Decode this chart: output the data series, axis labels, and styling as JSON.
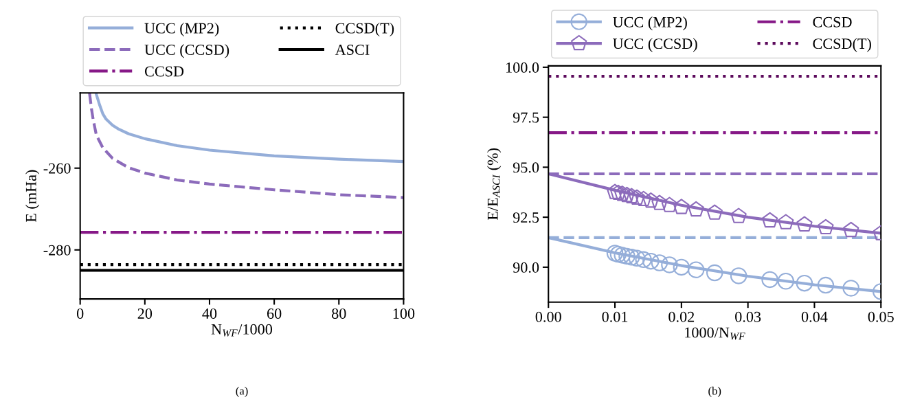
{
  "chart_data": [
    {
      "type": "line",
      "xlabel": "N$_{WF}$/1000",
      "ylabel": "E (mHa)",
      "xlim": [
        0,
        100
      ],
      "ylim": [
        -292,
        -241.6
      ],
      "xticks": [
        0,
        20,
        40,
        60,
        80,
        100
      ],
      "yticks": [
        -260,
        -280
      ],
      "legend": "top",
      "grid": false,
      "annotations": [
        "(a)"
      ],
      "series": [
        {
          "name": "UCC (MP2)",
          "color": "#95aed9",
          "line_style": "solid",
          "x": [
            4.9,
            6,
            7,
            8,
            10,
            12,
            15,
            20,
            30,
            40,
            60,
            80,
            100
          ],
          "values": [
            -241.7,
            -244.5,
            -246.7,
            -248.0,
            -249.5,
            -250.5,
            -251.6,
            -252.8,
            -254.5,
            -255.6,
            -257.0,
            -257.8,
            -258.4
          ]
        },
        {
          "name": "UCC (CCSD)",
          "color": "#8c6bbb",
          "line_style": "dashed",
          "x": [
            2.9,
            3.5,
            4,
            5,
            7,
            10,
            15,
            20,
            30,
            40,
            60,
            80,
            100
          ],
          "values": [
            -241.7,
            -245.5,
            -248.0,
            -251.9,
            -255.0,
            -257.6,
            -259.9,
            -261.2,
            -262.9,
            -263.9,
            -265.3,
            -266.5,
            -267.2
          ]
        },
        {
          "name": "CCSD",
          "color": "#861887",
          "line_style": "dashdot",
          "x": [
            0,
            100
          ],
          "values": [
            -275.7,
            -275.7
          ]
        },
        {
          "name": "CCSD(T)",
          "color": "#000000",
          "line_style": "dotted",
          "x": [
            0,
            100
          ],
          "values": [
            -283.6,
            -283.6
          ]
        },
        {
          "name": "ASCI",
          "color": "#000000",
          "line_style": "solid",
          "x": [
            0,
            100
          ],
          "values": [
            -285.0,
            -285.0
          ]
        }
      ]
    },
    {
      "type": "line",
      "xlabel": "1000/N$_{WF}$",
      "ylabel": "E/E$_{ASCI}$ (%)",
      "xlim": [
        0,
        0.05
      ],
      "ylim": [
        88.25,
        100.07
      ],
      "xticks": [
        {
          "value": 0,
          "label": "0.00"
        },
        {
          "value": 0.01,
          "label": "0.01"
        },
        {
          "value": 0.02,
          "label": "0.02"
        },
        {
          "value": 0.03,
          "label": "0.03"
        },
        {
          "value": 0.04,
          "label": "0.04"
        },
        {
          "value": 0.05,
          "label": "0.05"
        }
      ],
      "yticks": [
        {
          "value": 90,
          "label": "90.0"
        },
        {
          "value": 92.5,
          "label": "92.5"
        },
        {
          "value": 95,
          "label": "95.0"
        },
        {
          "value": 97.5,
          "label": "97.5"
        },
        {
          "value": 100,
          "label": "100.0"
        }
      ],
      "legend": "top",
      "grid": false,
      "annotations": [
        "(b)"
      ],
      "series": [
        {
          "name": "UCC (MP2)",
          "type": "scatter",
          "marker": "circle",
          "color": "#95aed9",
          "x": [
            0.01,
            0.0105,
            0.0111,
            0.0118,
            0.0125,
            0.0133,
            0.0143,
            0.0154,
            0.0167,
            0.0182,
            0.02,
            0.0222,
            0.025,
            0.0286,
            0.0333,
            0.0357,
            0.0385,
            0.0417,
            0.0455,
            0.05
          ],
          "values": [
            90.7,
            90.65,
            90.6,
            90.55,
            90.5,
            90.45,
            90.38,
            90.3,
            90.22,
            90.12,
            90.0,
            89.87,
            89.72,
            89.57,
            89.38,
            89.3,
            89.2,
            89.1,
            88.95,
            88.78
          ]
        },
        {
          "name": "UCC (CCSD)",
          "type": "scatter",
          "color": "#8c6bbb",
          "x": [
            0.01,
            0.0105,
            0.0111,
            0.0118,
            0.0125,
            0.0133,
            0.0143,
            0.0154,
            0.0167,
            0.0182,
            0.02,
            0.0222,
            0.025,
            0.0286,
            0.0333,
            0.0357,
            0.0385,
            0.0417,
            0.0455,
            0.05
          ],
          "values": [
            93.75,
            93.71,
            93.66,
            93.6,
            93.54,
            93.47,
            93.4,
            93.32,
            93.2,
            93.1,
            93.0,
            92.88,
            92.72,
            92.55,
            92.33,
            92.24,
            92.13,
            91.99,
            91.85,
            91.69
          ]
        },
        {
          "type": "line",
          "color": "#95aed9",
          "line_style": "solid",
          "x": [
            0,
            0.01,
            0.02,
            0.03,
            0.04,
            0.05
          ],
          "values": [
            91.48,
            90.72,
            90.08,
            89.55,
            89.12,
            88.78
          ]
        },
        {
          "type": "line",
          "color": "#8c6bbb",
          "line_style": "solid",
          "x": [
            0,
            0.01,
            0.02,
            0.03,
            0.04,
            0.05
          ],
          "values": [
            94.67,
            93.85,
            93.1,
            92.5,
            92.05,
            91.7
          ]
        },
        {
          "type": "line",
          "color": "#95aed9",
          "line_style": "dashed",
          "x": [
            0,
            0.05
          ],
          "values": [
            91.48,
            91.48
          ]
        },
        {
          "type": "line",
          "color": "#8c6bbb",
          "line_style": "dashed",
          "x": [
            0,
            0.05
          ],
          "values": [
            94.67,
            94.67
          ]
        },
        {
          "name": "CCSD",
          "color": "#861887",
          "line_style": "dashdot",
          "x": [
            0,
            0.05
          ],
          "values": [
            96.73,
            96.73
          ]
        },
        {
          "name": "CCSD(T)",
          "color": "#5c0a5c",
          "line_style": "dotted",
          "x": [
            0,
            0.05
          ],
          "values": [
            99.55,
            99.55
          ]
        }
      ]
    }
  ]
}
